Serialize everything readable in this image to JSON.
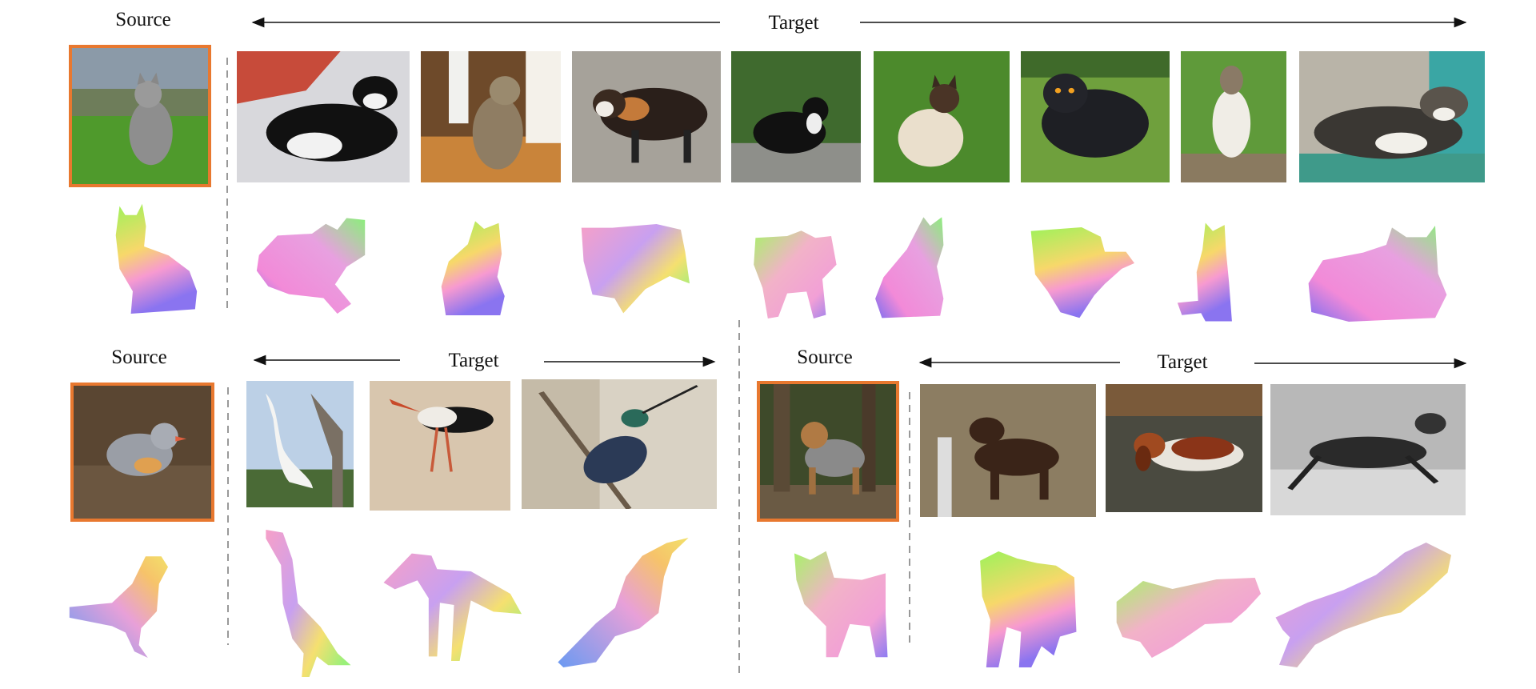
{
  "panels": {
    "cats": {
      "source_label": "Source",
      "target_label": "Target",
      "source": "tabby cat on grass",
      "targets": [
        "black and white cat on bed",
        "tabby cat on table",
        "calico cat",
        "tuxedo cat by bushes",
        "siamese cat on grass",
        "black fluffy cat",
        "cat sitting on bench",
        "cat lying on cushion"
      ]
    },
    "birds": {
      "source_label": "Source",
      "target_label": "Target",
      "source": "small grey bird",
      "targets": [
        "white egret",
        "stork",
        "hummingbird on branch"
      ]
    },
    "dogs": {
      "source_label": "Source",
      "target_label": "Target",
      "source": "shepherd dog in forest",
      "targets": [
        "brown labrador on leash",
        "basset hound",
        "running dog (black and white)"
      ]
    }
  },
  "colors": {
    "source_border": "#e8782f",
    "arrow": "#111111",
    "divider": "#999999"
  }
}
